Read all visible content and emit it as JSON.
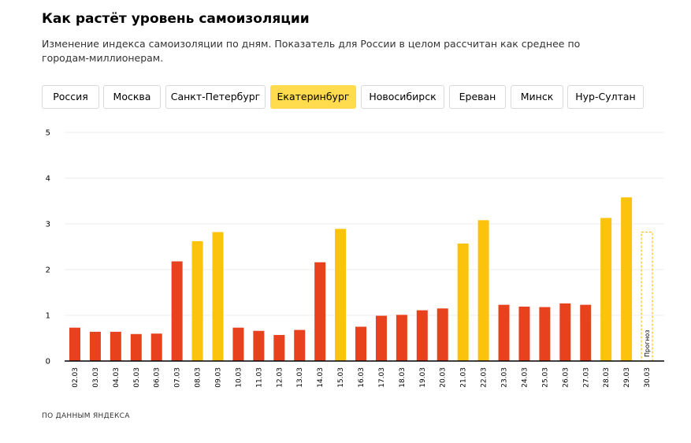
{
  "header": {
    "title": "Как растёт уровень самоизоляции",
    "subtitle": "Изменение индекса самоизоляции по дням. Показатель для России в целом рассчитан как среднее по городам-миллионерам."
  },
  "tabs": [
    {
      "label": "Россия",
      "active": false
    },
    {
      "label": "Москва",
      "active": false
    },
    {
      "label": "Санкт-Петербург",
      "active": false
    },
    {
      "label": "Екатеринбург",
      "active": true
    },
    {
      "label": "Новосибирск",
      "active": false
    },
    {
      "label": "Ереван",
      "active": false
    },
    {
      "label": "Минск",
      "active": false
    },
    {
      "label": "Нур-Султан",
      "active": false
    }
  ],
  "colors": {
    "weekday": "#e8411e",
    "weekend": "#fbc30b",
    "forecast": "#fbc30b",
    "active_tab": "#ffdb4d"
  },
  "chart_data": {
    "type": "bar",
    "title": "",
    "xlabel": "",
    "ylabel": "",
    "ylim": [
      0,
      5
    ],
    "yticks": [
      "0",
      "1",
      "2",
      "3",
      "4",
      "5"
    ],
    "grid": true,
    "categories": [
      "02.03",
      "03.03",
      "04.03",
      "05.03",
      "06.03",
      "07.03",
      "08.03",
      "09.03",
      "10.03",
      "11.03",
      "12.03",
      "13.03",
      "14.03",
      "15.03",
      "16.03",
      "17.03",
      "18.03",
      "19.03",
      "20.03",
      "21.03",
      "22.03",
      "23.03",
      "24.03",
      "25.03",
      "26.03",
      "27.03",
      "28.03",
      "29.03",
      "30.03"
    ],
    "values": [
      0.73,
      0.64,
      0.64,
      0.59,
      0.6,
      2.18,
      2.62,
      2.82,
      0.73,
      0.66,
      0.57,
      0.68,
      2.16,
      2.89,
      0.75,
      0.99,
      1.01,
      1.11,
      1.15,
      2.57,
      3.08,
      1.23,
      1.19,
      1.18,
      1.26,
      1.23,
      3.13,
      3.58,
      2.82
    ],
    "kinds": [
      "weekday",
      "weekday",
      "weekday",
      "weekday",
      "weekday",
      "weekday",
      "weekend",
      "weekend",
      "weekday",
      "weekday",
      "weekday",
      "weekday",
      "weekday",
      "weekend",
      "weekday",
      "weekday",
      "weekday",
      "weekday",
      "weekday",
      "weekend",
      "weekend",
      "weekday",
      "weekday",
      "weekday",
      "weekday",
      "weekday",
      "weekend",
      "weekend",
      "forecast"
    ],
    "annotations": [
      {
        "category": "30.03",
        "text": "Прогноз"
      }
    ]
  },
  "footer": {
    "source": "ПО ДАННЫМ ЯНДЕКСА"
  }
}
